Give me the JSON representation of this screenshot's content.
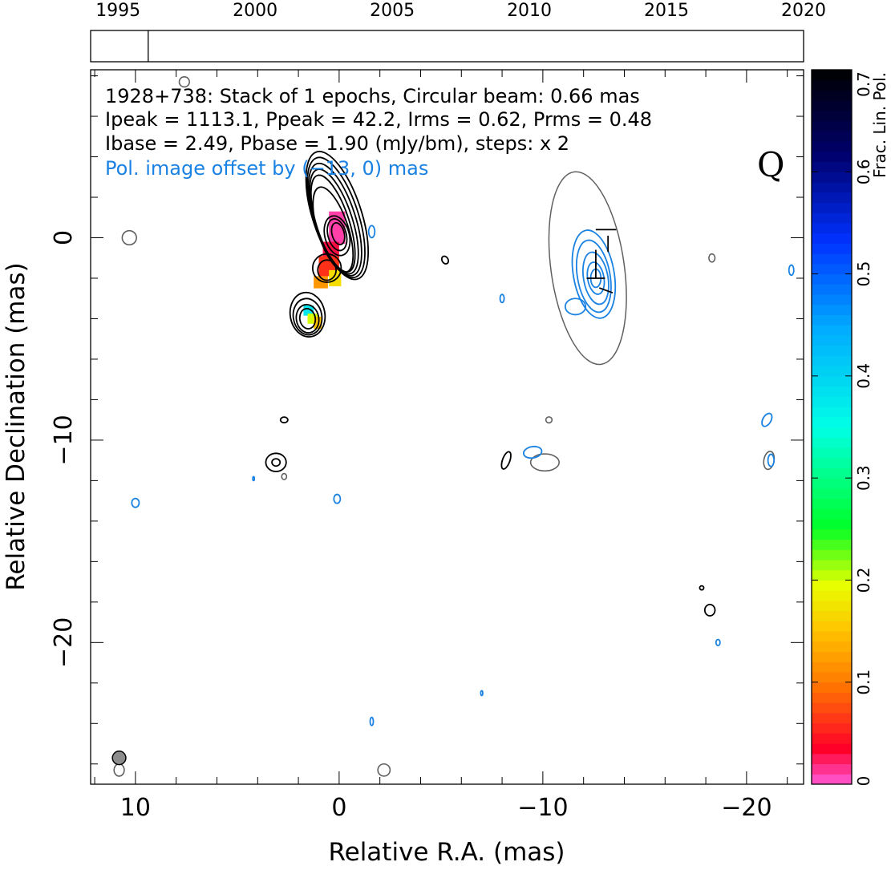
{
  "chart_data": {
    "type": "contour",
    "timeline": {
      "ticks": [
        "1995",
        "2000",
        "2005",
        "2010",
        "2015",
        "2020"
      ],
      "range": [
        1994,
        2020
      ],
      "epoch_markers": [
        1996.1
      ]
    },
    "info_lines": [
      "1928+738: Stack of 1 epochs, Circular beam: 0.66 mas",
      "Ipeak = 1113.1, Ppeak = 42.2, Irms = 0.62, Prms = 0.48",
      "Ibase = 2.49, Pbase = 1.90 (mJy/bm), steps: x 2"
    ],
    "offset_note": "Pol. image offset by (−13, 0) mas",
    "quality_label": "Q",
    "xlabel": "Relative R.A. (mas)",
    "ylabel": "Relative Declination (mas)",
    "xlim": [
      12.2,
      -22.8
    ],
    "ylim": [
      -27,
      8.3
    ],
    "x_ticks": [
      {
        "v": 10,
        "label": "10"
      },
      {
        "v": 0,
        "label": "0"
      },
      {
        "v": -10,
        "label": "−10"
      },
      {
        "v": -20,
        "label": "−20"
      }
    ],
    "y_ticks": [
      {
        "v": 0,
        "label": "0"
      },
      {
        "v": -10,
        "label": "−10"
      },
      {
        "v": -20,
        "label": "−20"
      }
    ],
    "colorbar": {
      "label": "Frac. Lin. Pol.",
      "range": [
        0,
        0.7
      ],
      "ticks": [
        "0",
        "0.1",
        "0.2",
        "0.3",
        "0.4",
        "0.5",
        "0.6",
        "0.7"
      ]
    },
    "beam_mas": 0.66,
    "colors": {
      "stokes_i": "#000000",
      "polarization": "#1a82e2",
      "negative": "#606060",
      "offset_text": "#1a82e2"
    },
    "i_core": [
      {
        "ra": 0.1,
        "dec": 1.1,
        "rx": 1.2,
        "ry": 3.3,
        "rot": -18
      },
      {
        "ra": 0.15,
        "dec": 1.0,
        "rx": 1.1,
        "ry": 3.1,
        "rot": -18
      },
      {
        "ra": 0.2,
        "dec": 0.9,
        "rx": 1.0,
        "ry": 2.9,
        "rot": -18
      },
      {
        "ra": 0.25,
        "dec": 0.8,
        "rx": 0.9,
        "ry": 2.7,
        "rot": -18
      },
      {
        "ra": 0.3,
        "dec": 0.7,
        "rx": 0.8,
        "ry": 2.5,
        "rot": -18
      },
      {
        "ra": 0.3,
        "dec": 0.4,
        "rx": 0.75,
        "ry": 2.2,
        "rot": -18
      },
      {
        "ra": 0.1,
        "dec": 0.1,
        "rx": 0.6,
        "ry": 1.0,
        "rot": -15
      },
      {
        "ra": 0.1,
        "dec": 0.15,
        "rx": 0.45,
        "ry": 0.8,
        "rot": -15
      },
      {
        "ra": 0.05,
        "dec": 0.2,
        "rx": 0.3,
        "ry": 0.55,
        "rot": -15
      },
      {
        "ra": 0.6,
        "dec": -1.5,
        "rx": 0.7,
        "ry": 0.7,
        "rot": 0
      },
      {
        "ra": 0.6,
        "dec": -1.6,
        "rx": 0.45,
        "ry": 0.5,
        "rot": 0
      }
    ],
    "i_lower_blob": [
      {
        "ra": 1.55,
        "dec": -3.8,
        "rx": 0.85,
        "ry": 1.1,
        "rot": -10
      },
      {
        "ra": 1.55,
        "dec": -3.9,
        "rx": 0.7,
        "ry": 0.9,
        "rot": -10
      },
      {
        "ra": 1.55,
        "dec": -4.0,
        "rx": 0.55,
        "ry": 0.7,
        "rot": -10
      },
      {
        "ra": 1.55,
        "dec": -4.0,
        "rx": 0.38,
        "ry": 0.5,
        "rot": -10
      }
    ],
    "frac_pol_pixels": [
      {
        "ra": 0.1,
        "dec": 0.5,
        "w": 0.8,
        "h": 1.6,
        "frac": 0.01
      },
      {
        "ra": 0.4,
        "dec": -0.6,
        "w": 0.8,
        "h": 0.8,
        "frac": 0.03
      },
      {
        "ra": 0.5,
        "dec": -1.4,
        "w": 1.0,
        "h": 1.0,
        "frac": 0.06
      },
      {
        "ra": 0.2,
        "dec": -2.0,
        "w": 0.6,
        "h": 0.8,
        "frac": 0.17
      },
      {
        "ra": 0.9,
        "dec": -2.2,
        "w": 0.7,
        "h": 0.6,
        "frac": 0.12
      },
      {
        "ra": 1.5,
        "dec": -3.6,
        "w": 0.5,
        "h": 0.5,
        "frac": 0.38
      },
      {
        "ra": 1.3,
        "dec": -4.0,
        "w": 0.5,
        "h": 0.5,
        "frac": 0.2
      },
      {
        "ra": 1.05,
        "dec": -4.2,
        "w": 0.4,
        "h": 0.6,
        "frac": 0.15
      }
    ],
    "pol_contours": [
      {
        "ra": -12.5,
        "dec": -1.8,
        "rx": 1.0,
        "ry": 2.2,
        "rot": -10
      },
      {
        "ra": -12.5,
        "dec": -1.9,
        "rx": 0.8,
        "ry": 1.8,
        "rot": -10
      },
      {
        "ra": -12.6,
        "dec": -2.0,
        "rx": 0.6,
        "ry": 1.3,
        "rot": -10
      },
      {
        "ra": -12.6,
        "dec": -2.0,
        "rx": 0.4,
        "ry": 0.8,
        "rot": -10
      },
      {
        "ra": -12.6,
        "dec": -2.0,
        "rx": 0.25,
        "ry": 0.45,
        "rot": 0
      },
      {
        "ra": -11.6,
        "dec": -3.4,
        "rx": 0.5,
        "ry": 0.4,
        "rot": 0
      },
      {
        "ra": -1.6,
        "dec": 0.3,
        "rx": 0.15,
        "ry": 0.3,
        "rot": 0
      },
      {
        "ra": -8.0,
        "dec": -3.0,
        "rx": 0.1,
        "ry": 0.2,
        "rot": 0
      },
      {
        "ra": -22.2,
        "dec": -1.6,
        "rx": 0.12,
        "ry": 0.25,
        "rot": 0
      },
      {
        "ra": -21.0,
        "dec": -9.0,
        "rx": 0.2,
        "ry": 0.35,
        "rot": 30
      },
      {
        "ra": -21.2,
        "dec": -11.0,
        "rx": 0.15,
        "ry": 0.3,
        "rot": 0
      },
      {
        "ra": -9.5,
        "dec": -10.6,
        "rx": 0.45,
        "ry": 0.28,
        "rot": -10
      },
      {
        "ra": 10.0,
        "dec": -13.1,
        "rx": 0.18,
        "ry": 0.22,
        "rot": 0
      },
      {
        "ra": 0.1,
        "dec": -12.9,
        "rx": 0.16,
        "ry": 0.22,
        "rot": 0
      },
      {
        "ra": -18.6,
        "dec": -20.0,
        "rx": 0.1,
        "ry": 0.15,
        "rot": 0
      },
      {
        "ra": -1.6,
        "dec": -23.9,
        "rx": 0.08,
        "ry": 0.2,
        "rot": 0
      },
      {
        "ra": -7.0,
        "dec": -22.5,
        "rx": 0.05,
        "ry": 0.12,
        "rot": 0
      },
      {
        "ra": 4.2,
        "dec": -11.9,
        "rx": 0.04,
        "ry": 0.1,
        "rot": 0
      }
    ],
    "i_small": [
      {
        "ra": 3.1,
        "dec": -11.1,
        "rx": 0.5,
        "ry": 0.45,
        "rot": 0
      },
      {
        "ra": 3.1,
        "dec": -11.1,
        "rx": 0.2,
        "ry": 0.18,
        "rot": 0
      },
      {
        "ra": 2.7,
        "dec": -9.0,
        "rx": 0.18,
        "ry": 0.14,
        "rot": 0
      },
      {
        "ra": -5.2,
        "dec": -1.1,
        "rx": 0.15,
        "ry": 0.2,
        "rot": -30
      },
      {
        "ra": -8.2,
        "dec": -11.0,
        "rx": 0.18,
        "ry": 0.45,
        "rot": 20
      },
      {
        "ra": -17.8,
        "dec": -17.3,
        "rx": 0.1,
        "ry": 0.1,
        "rot": 0
      },
      {
        "ra": -18.2,
        "dec": -18.4,
        "rx": 0.25,
        "ry": 0.28,
        "rot": 0
      }
    ],
    "negative_contours": [
      {
        "ra": 10.3,
        "dec": 0.0,
        "rx": 0.35,
        "ry": 0.35,
        "rot": 0
      },
      {
        "ra": 7.6,
        "dec": 7.7,
        "rx": 0.25,
        "ry": 0.25,
        "rot": 0
      },
      {
        "ra": 2.7,
        "dec": -11.8,
        "rx": 0.12,
        "ry": 0.15,
        "rot": 0
      },
      {
        "ra": -10.3,
        "dec": -9.0,
        "rx": 0.15,
        "ry": 0.15,
        "rot": 0
      },
      {
        "ra": -10.1,
        "dec": -11.1,
        "rx": 0.7,
        "ry": 0.42,
        "rot": 0
      },
      {
        "ra": -18.3,
        "dec": -1.0,
        "rx": 0.15,
        "ry": 0.2,
        "rot": 0
      },
      {
        "ra": -21.1,
        "dec": -11.0,
        "rx": 0.25,
        "ry": 0.45,
        "rot": 10
      },
      {
        "ra": 10.8,
        "dec": -26.3,
        "rx": 0.25,
        "ry": 0.3,
        "rot": 0
      },
      {
        "ra": -2.2,
        "dec": -26.3,
        "rx": 0.3,
        "ry": 0.3,
        "rot": 0
      }
    ],
    "offset_total_i": [
      {
        "ra": -12.2,
        "dec": -1.5,
        "rx": 1.8,
        "ry": 4.8,
        "rot": -8
      }
    ],
    "evpa_ticks": [
      {
        "ra": -13.1,
        "dec": 0.4,
        "angle": 0,
        "len": 1.0
      },
      {
        "ra": -13.2,
        "dec": -0.3,
        "angle": 90,
        "len": 0.8
      },
      {
        "ra": -12.6,
        "dec": -1.0,
        "angle": 90,
        "len": 0.8
      },
      {
        "ra": -12.6,
        "dec": -1.6,
        "angle": 90,
        "len": 0.8
      },
      {
        "ra": -12.6,
        "dec": -2.0,
        "angle": 0,
        "len": 0.9
      },
      {
        "ra": -13.1,
        "dec": -2.6,
        "angle": 20,
        "len": 0.7
      }
    ]
  }
}
